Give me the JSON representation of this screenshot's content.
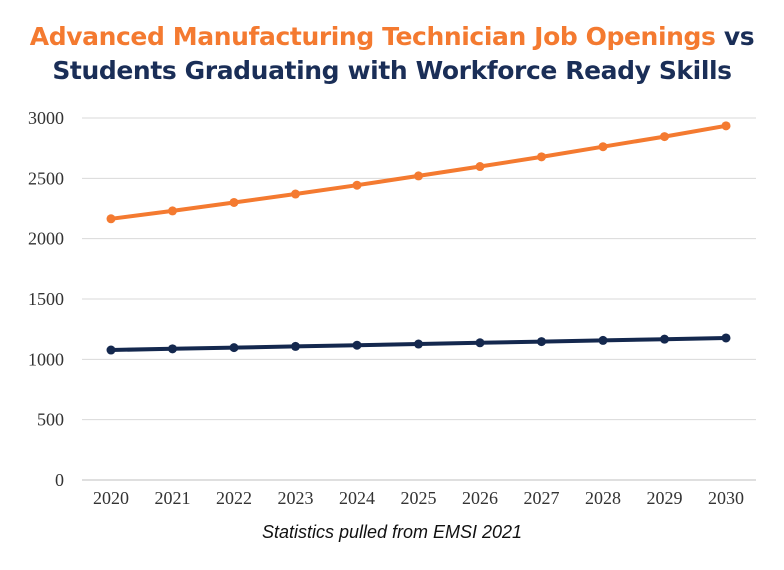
{
  "chart_data": {
    "type": "line",
    "title": {
      "part1": "Advanced Manufacturing Technician Job Openings",
      "part2": "vs",
      "line2": "Students Graduating with Workforce Ready Skills"
    },
    "caption": "Statistics pulled from EMSI 2021",
    "x": [
      "2020",
      "2021",
      "2022",
      "2023",
      "2024",
      "2025",
      "2026",
      "2027",
      "2028",
      "2029",
      "2030"
    ],
    "series": [
      {
        "values": [
          2165,
          2230,
          2300,
          2370,
          2443,
          2520,
          2598,
          2678,
          2762,
          2846,
          2935
        ],
        "color": "#f47a30"
      },
      {
        "values": [
          1077,
          1087,
          1097,
          1107,
          1117,
          1127,
          1137,
          1147,
          1157,
          1167,
          1177
        ],
        "color": "#14284e"
      }
    ],
    "ylim": [
      0,
      3000
    ],
    "yticks": [
      0,
      500,
      1000,
      1500,
      2000,
      2500,
      3000
    ],
    "grid": true,
    "legend": "none"
  }
}
